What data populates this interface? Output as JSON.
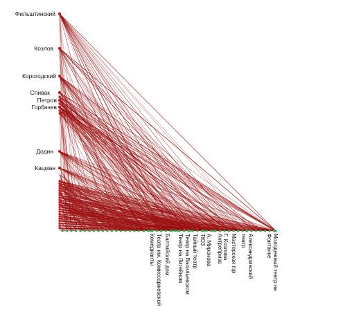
{
  "diagram": {
    "type": "bipartite-graph",
    "edge_color": "#9b0f0f",
    "left_node_color": "#c81414",
    "bottom_node_color": "#22b14c",
    "left_labels": [
      "Фильштинский",
      "Козлов",
      "Корогодский",
      "Спивак",
      "Петров",
      "Горбачев",
      "Додин",
      "Кацман"
    ],
    "bottom_labels": [
      "Театр им. Комиссаржевской",
      "Комедианты",
      "Балтийский дом",
      "Театр на Литейном",
      "Театр на Васильевском",
      "Тайный театр",
      "ТЮЗ",
      "А. Миронова",
      "Антреприза",
      "Г. Козлова",
      "Мастерская п/р",
      "театр",
      "Александринский",
      "Фонтанке",
      "Молодежный театр на"
    ]
  }
}
